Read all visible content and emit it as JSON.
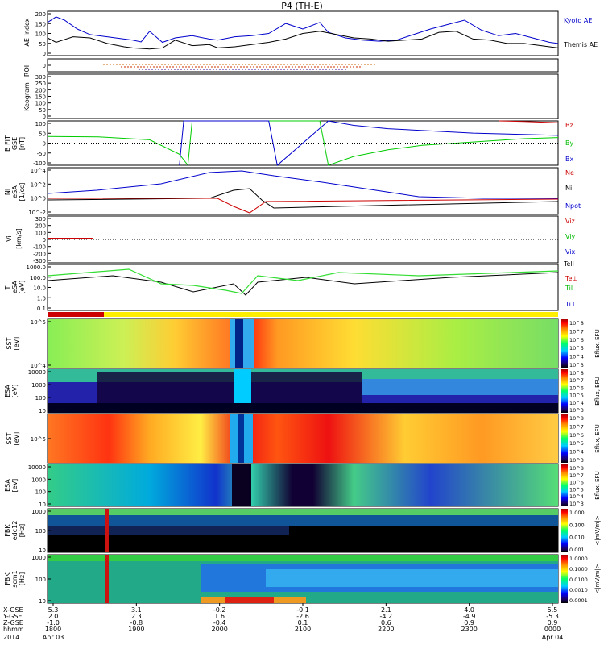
{
  "title": "P4 (TH-E)",
  "chart_data": {
    "type": "line",
    "title": "P4 (TH-E)",
    "time_axis": {
      "ticks": [
        "1800",
        "1900",
        "2000",
        "2100",
        "2200",
        "2300",
        "0000"
      ],
      "label_hhmm": "hhmm",
      "label_year": "2014",
      "start_date": "Apr 03",
      "end_date": "Apr 04",
      "range_hours": [
        18.0,
        24.0
      ],
      "coord_rows": [
        {
          "label": "X-GSE",
          "values": [
            "5.3",
            "3.1",
            "-0.2",
            "-0.1",
            "2.1",
            "4.0",
            "5.5"
          ]
        },
        {
          "label": "Y-GSE",
          "values": [
            "2.0",
            "2.3",
            "1.6",
            "-2.6",
            "-4.2",
            "-4.9",
            "-5.3"
          ]
        },
        {
          "label": "Z-GSE",
          "values": [
            "-1.0",
            "-0.8",
            "-0.4",
            "0.1",
            "0.6",
            "0.9",
            "0.9"
          ]
        }
      ]
    },
    "panels": [
      {
        "id": "ae",
        "ylabel": "AE Index",
        "yticks": [
          "200",
          "150",
          "100",
          "50",
          "0"
        ],
        "ylim": [
          0,
          200
        ],
        "series": [
          {
            "name": "Kyoto AE",
            "color": "#0000cc",
            "x": [
              18.0,
              18.1,
              18.2,
              18.35,
              18.5,
              18.7,
              18.9,
              19.0,
              19.1,
              19.2,
              19.35,
              19.5,
              19.7,
              19.9,
              20.0,
              20.2,
              20.4,
              20.6,
              20.8,
              21.0,
              21.2,
              21.3,
              21.5,
              21.7,
              21.9,
              22.1,
              22.3,
              22.5,
              22.7,
              22.9,
              23.1,
              23.3,
              23.5,
              23.7,
              23.9,
              24.0
            ],
            "values": [
              150,
              175,
              160,
              120,
              95,
              85,
              75,
              70,
              62,
              110,
              60,
              80,
              90,
              75,
              70,
              85,
              90,
              100,
              145,
              120,
              150,
              105,
              80,
              70,
              65,
              70,
              95,
              120,
              140,
              160,
              115,
              90,
              100,
              80,
              60,
              55
            ]
          },
          {
            "name": "Themis AE",
            "color": "#000000",
            "x": [
              18.0,
              18.1,
              18.3,
              18.5,
              18.7,
              18.9,
              19.0,
              19.2,
              19.35,
              19.5,
              19.7,
              19.9,
              20.0,
              20.2,
              20.4,
              20.6,
              20.8,
              21.0,
              21.2,
              21.4,
              21.6,
              21.8,
              22.0,
              22.2,
              22.4,
              22.6,
              22.8,
              23.0,
              23.2,
              23.4,
              23.6,
              23.8,
              24.0
            ],
            "values": [
              80,
              60,
              85,
              80,
              55,
              40,
              35,
              30,
              35,
              70,
              45,
              50,
              35,
              40,
              50,
              60,
              75,
              100,
              110,
              95,
              80,
              75,
              65,
              70,
              75,
              105,
              110,
              75,
              70,
              55,
              55,
              45,
              35
            ]
          }
        ]
      },
      {
        "id": "roi",
        "ylabel": "ROI",
        "yticks": [
          "0"
        ]
      },
      {
        "id": "keogram",
        "ylabel": "Keogram",
        "yticks": [
          "300",
          "250",
          "200",
          "150",
          "100",
          "50",
          "0"
        ],
        "ylim": [
          0,
          300
        ]
      },
      {
        "id": "bfit",
        "ylabel": "B FIT GSE [nT]",
        "yticks": [
          "100",
          "50",
          "0",
          "-50",
          "-100"
        ],
        "ylim": [
          -100,
          100
        ],
        "series": [
          {
            "name": "Bz",
            "color": "#cc0000",
            "x": [
              23.3,
              23.6,
              24.0
            ],
            "values": [
              100,
              97,
              92
            ]
          },
          {
            "name": "By",
            "color": "#00cc00",
            "x": [
              18.0,
              18.6,
              19.2,
              19.55,
              19.65,
              19.7,
              21.2,
              21.3,
              21.6,
              22.0,
              22.4,
              22.8,
              23.2,
              23.6,
              24.0
            ],
            "values": [
              30,
              28,
              15,
              -50,
              -100,
              100,
              100,
              -100,
              -60,
              -30,
              -10,
              0,
              10,
              20,
              25
            ]
          },
          {
            "name": "Bx",
            "color": "#0000cc",
            "x": [
              19.55,
              19.6,
              20.6,
              20.7,
              21.3,
              21.6,
              22.0,
              22.5,
              23.0,
              23.5,
              24.0
            ],
            "values": [
              -100,
              100,
              100,
              -100,
              100,
              80,
              65,
              55,
              45,
              40,
              35
            ]
          }
        ]
      },
      {
        "id": "ni",
        "ylabel": "Ni [1/cc]",
        "yticks": [
          "10^4",
          "10^2",
          "10^0",
          "10^-2"
        ],
        "legend": [
          "Ne",
          "Ni",
          "Npot"
        ]
      },
      {
        "id": "vi",
        "ylabel": "Vi [km/s]",
        "yticks": [
          "300",
          "200",
          "100",
          "0",
          "-100",
          "-200",
          "-300"
        ],
        "ylim": [
          -300,
          300
        ],
        "legend": [
          "Viz",
          "Viy",
          "Vix"
        ]
      },
      {
        "id": "ti",
        "ylabel": "Ti [eV]",
        "yticks": [
          "1000.0",
          "100.0",
          "10.0",
          "1.0",
          "0.1"
        ],
        "legend": [
          "Tell",
          "Te⊥",
          "Til",
          "Ti⊥"
        ]
      },
      {
        "id": "sst1",
        "ylabel": "SST [eV]",
        "yticks": [
          "10^5",
          "10^4"
        ],
        "colorbar_label": "Eflux, EFU",
        "colorbar_ticks": [
          "10^8",
          "10^7",
          "10^6",
          "10^5",
          "10^4",
          "10^3"
        ]
      },
      {
        "id": "esa1",
        "ylabel": "ESA [eV]",
        "yticks": [
          "10000",
          "1000",
          "100",
          "10"
        ],
        "colorbar_label": "Eflux, EFU",
        "colorbar_ticks": [
          "10^8",
          "10^7",
          "10^6",
          "10^5",
          "10^4",
          "10^3"
        ]
      },
      {
        "id": "sst2",
        "ylabel": "SST [eV]",
        "yticks": [
          "10^5"
        ],
        "colorbar_label": "Eflux, EFU",
        "colorbar_ticks": [
          "10^8",
          "10^7",
          "10^6",
          "10^5",
          "10^4",
          "10^3"
        ]
      },
      {
        "id": "esa2",
        "ylabel": "ESA [eV]",
        "yticks": [
          "10000",
          "1000",
          "100",
          "10"
        ],
        "colorbar_label": "Eflux, EFU",
        "colorbar_ticks": [
          "10^8",
          "10^7",
          "10^6",
          "10^5",
          "10^4",
          "10^3"
        ]
      },
      {
        "id": "fbk1",
        "ylabel": "FBK [Hz]",
        "yticks": [
          "1000",
          "100",
          "10"
        ],
        "colorbar_label": "<|mV/m|>",
        "colorbar_ticks": [
          "1.000",
          "0.100",
          "0.010",
          "0.001"
        ]
      },
      {
        "id": "fbk2",
        "ylabel": "FBK [Hz]",
        "yticks": [
          "1000",
          "100",
          "10"
        ],
        "colorbar_label": "<|mV/m|>",
        "colorbar_ticks": [
          "1.0000",
          "0.1000",
          "0.0100",
          "0.0010",
          "0.0001"
        ]
      }
    ]
  },
  "labels": {
    "ae_y": "AE Index",
    "roi_y": "ROI",
    "keo_y": "Keogram",
    "bfit_y": "B FIT",
    "bfit_y2": "GSE",
    "bfit_y3": "[nT]",
    "ni_y": "Ni",
    "ni_y2": "eSA",
    "ni_y3": "[1/cc]",
    "vi_y": "Vi",
    "vi_y2": "[km/s]",
    "ti_y": "Ti",
    "ti_y2": "eSA",
    "ti_y3": "[eV]",
    "sst1_y": "SST",
    "sst1_y2": "[eV]",
    "esa1_y": "ESA",
    "esa1_y2": "[eV]",
    "sst2_y": "SST",
    "sst2_y2": "[eV]",
    "esa2_y": "ESA",
    "esa2_y2": "[eV]",
    "fbk1_y": "FBK",
    "fbk1_y2": "edc12",
    "fbk1_y3": "[Hz]",
    "fbk2_y": "FBK",
    "fbk2_y2": "scm1",
    "fbk2_y3": "[Hz]"
  },
  "legends": {
    "kyoto": "Kyoto AE",
    "themis": "Themis AE",
    "bz": "Bz",
    "by": "By",
    "bx": "Bx",
    "ne": "Ne",
    "ni": "Ni",
    "npot": "Npot",
    "viz": "Viz",
    "viy": "Viy",
    "vix": "Vix",
    "tell": "Tell",
    "teperp": "Te⊥",
    "til": "Til",
    "tiperp": "Ti⊥"
  },
  "colorbars": {
    "eflux": "Eflux, EFU",
    "mvm": "<|mV/m|>"
  },
  "colors": {
    "kyoto": "#0000cc",
    "themis": "#000000",
    "bz": "#cc0000",
    "by": "#00cc00",
    "bx": "#0000cc",
    "tell": "#000000",
    "til": "#33dd33"
  }
}
